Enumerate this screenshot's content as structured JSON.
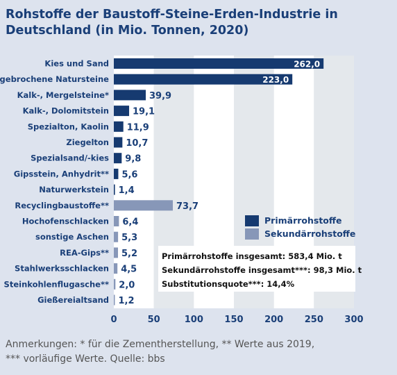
{
  "title": "Rohstoffe der Baustoff-Steine-Erden-Industrie in Deutschland (in Mio. Tonnen, 2020)",
  "footnote": {
    "line1": "Anmerkungen: * für die Zementherstellung, ** Werte aus 2019,",
    "line2": "*** vorläufige Werte. Quelle: bbs"
  },
  "colors": {
    "primary": "#163a70",
    "secondary": "#8797b8",
    "background": "#dde3ee",
    "stripe": "#e4e8ec",
    "text": "#1a3f78"
  },
  "chart_data": {
    "type": "bar",
    "orientation": "horizontal",
    "xlim": [
      0,
      300
    ],
    "xticks": [
      "0",
      "50",
      "100",
      "150",
      "200",
      "250",
      "300"
    ],
    "categories": [
      "Kies und Sand",
      "gebrochene Natursteine",
      "Kalk-, Mergelsteine*",
      "Kalk-, Dolomitstein",
      "Spezialton, Kaolin",
      "Ziegelton",
      "Spezialsand/-kies",
      "Gipsstein, Anhydrit**",
      "Naturwerkstein",
      "Recyclingbaustoffe**",
      "Hochofenschlacken",
      "sonstige Aschen",
      "REA-Gips**",
      "Stahlwerksschlacken",
      "Steinkohlenflugasche**",
      "Gießereialtsand"
    ],
    "values": [
      262.0,
      223.0,
      39.9,
      19.1,
      11.9,
      10.7,
      9.8,
      5.6,
      1.4,
      73.7,
      6.4,
      5.3,
      5.2,
      4.5,
      2.0,
      1.2
    ],
    "value_labels": [
      "262,0",
      "223,0",
      "39,9",
      "19,1",
      "11,9",
      "10,7",
      "9,8",
      "5,6",
      "1,4",
      "73,7",
      "6,4",
      "5,3",
      "5,2",
      "4,5",
      "2,0",
      "1,2"
    ],
    "groups": [
      "primary",
      "primary",
      "primary",
      "primary",
      "primary",
      "primary",
      "primary",
      "primary",
      "primary",
      "secondary",
      "secondary",
      "secondary",
      "secondary",
      "secondary",
      "secondary",
      "secondary"
    ],
    "legend": {
      "placement": "right",
      "primary_label": "Primärrohstoffe",
      "secondary_label": "Sekundärrohstoffe"
    },
    "summary": [
      "Primärrohstoffe insgesamt: 583,4 Mio. t",
      "Sekundärrohstoffe insgesamt***: 98,3 Mio. t",
      "Substitutionsquote***: 14,4%"
    ],
    "grid": "alternating vertical bands"
  }
}
